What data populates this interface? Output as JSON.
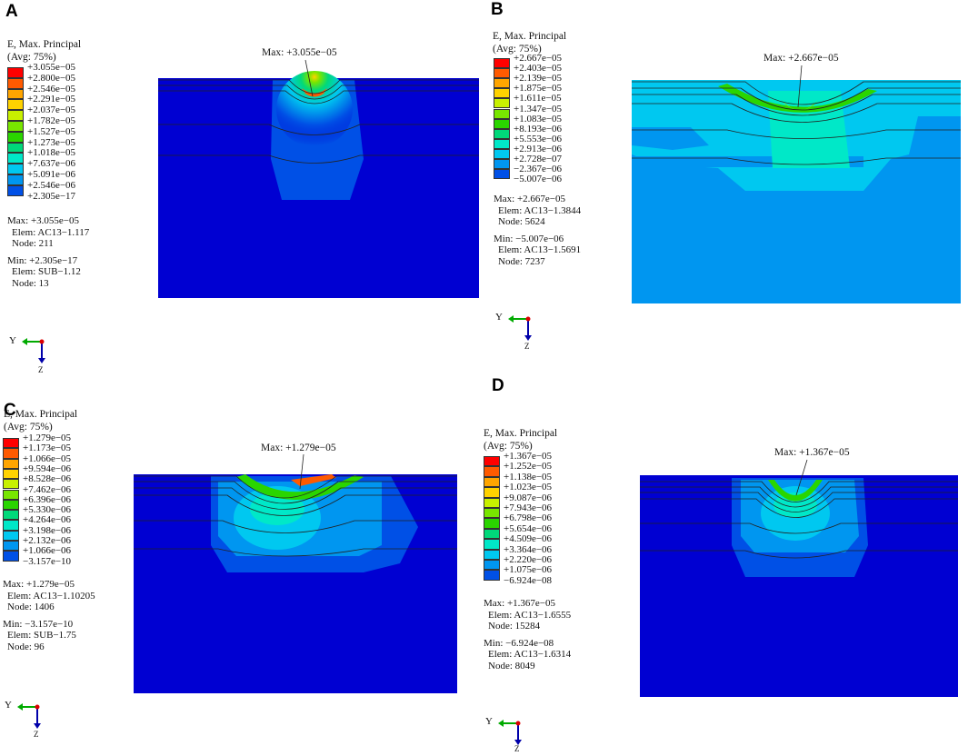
{
  "panels": [
    {
      "label": "A",
      "title1": "E, Max. Principal",
      "title2": "(Avg: 75%)",
      "legend": [
        "+3.055e−05",
        "+2.800e−05",
        "+2.546e−05",
        "+2.291e−05",
        "+2.037e−05",
        "+1.782e−05",
        "+1.527e−05",
        "+1.273e−05",
        "+1.018e−05",
        "+7.637e−06",
        "+5.091e−06",
        "+2.546e−06",
        "+2.305e−17"
      ],
      "max_val": "Max: +3.055e−05",
      "max_elem": "Elem: AC13−1.117",
      "max_node": "Node: 211",
      "min_val": "Min: +2.305e−17",
      "min_elem": "Elem: SUB−1.12",
      "min_node": "Node: 13",
      "plot_max": "Max: +3.055e−05",
      "axis_y": "Y",
      "axis_z": "Z"
    },
    {
      "label": "B",
      "title1": "E, Max. Principal",
      "title2": "(Avg: 75%)",
      "legend": [
        "+2.667e−05",
        "+2.403e−05",
        "+2.139e−05",
        "+1.875e−05",
        "+1.611e−05",
        "+1.347e−05",
        "+1.083e−05",
        "+8.193e−06",
        "+5.553e−06",
        "+2.913e−06",
        "+2.728e−07",
        "−2.367e−06",
        "−5.007e−06"
      ],
      "max_val": "Max: +2.667e−05",
      "max_elem": "Elem: AC13−1.3844",
      "max_node": "Node: 5624",
      "min_val": "Min: −5.007e−06",
      "min_elem": "Elem: AC13−1.5691",
      "min_node": "Node: 7237",
      "plot_max": "Max: +2.667e−05",
      "axis_y": "Y",
      "axis_z": "Z"
    },
    {
      "label": "C",
      "title1": "E, Max. Principal",
      "title2": "(Avg: 75%)",
      "legend": [
        "+1.279e−05",
        "+1.173e−05",
        "+1.066e−05",
        "+9.594e−06",
        "+8.528e−06",
        "+7.462e−06",
        "+6.396e−06",
        "+5.330e−06",
        "+4.264e−06",
        "+3.198e−06",
        "+2.132e−06",
        "+1.066e−06",
        "−3.157e−10"
      ],
      "max_val": "Max: +1.279e−05",
      "max_elem": "Elem: AC13−1.10205",
      "max_node": "Node: 1406",
      "min_val": "Min: −3.157e−10",
      "min_elem": "Elem: SUB−1.75",
      "min_node": "Node: 96",
      "plot_max": "Max: +1.279e−05",
      "axis_y": "Y",
      "axis_z": "Z"
    },
    {
      "label": "D",
      "title1": "E, Max. Principal",
      "title2": "(Avg: 75%)",
      "legend": [
        "+1.367e−05",
        "+1.252e−05",
        "+1.138e−05",
        "+1.023e−05",
        "+9.087e−06",
        "+7.943e−06",
        "+6.798e−06",
        "+5.654e−06",
        "+4.509e−06",
        "+3.364e−06",
        "+2.220e−06",
        "+1.075e−06",
        "−6.924e−08"
      ],
      "max_val": "Max: +1.367e−05",
      "max_elem": "Elem: AC13−1.6555",
      "max_node": "Node: 15284",
      "min_val": "Min: −6.924e−08",
      "min_elem": "Elem: AC13−1.6314",
      "min_node": "Node: 8049",
      "plot_max": "Max: +1.367e−05",
      "axis_y": "Y",
      "axis_z": "Z"
    }
  ],
  "colormap": [
    "#ff0000",
    "#ff5a00",
    "#ffa500",
    "#ffd200",
    "#c8f000",
    "#78e600",
    "#2ad500",
    "#00d97a",
    "#00e8c8",
    "#00c8f0",
    "#0096f0",
    "#0050e6",
    "#0000d2"
  ]
}
